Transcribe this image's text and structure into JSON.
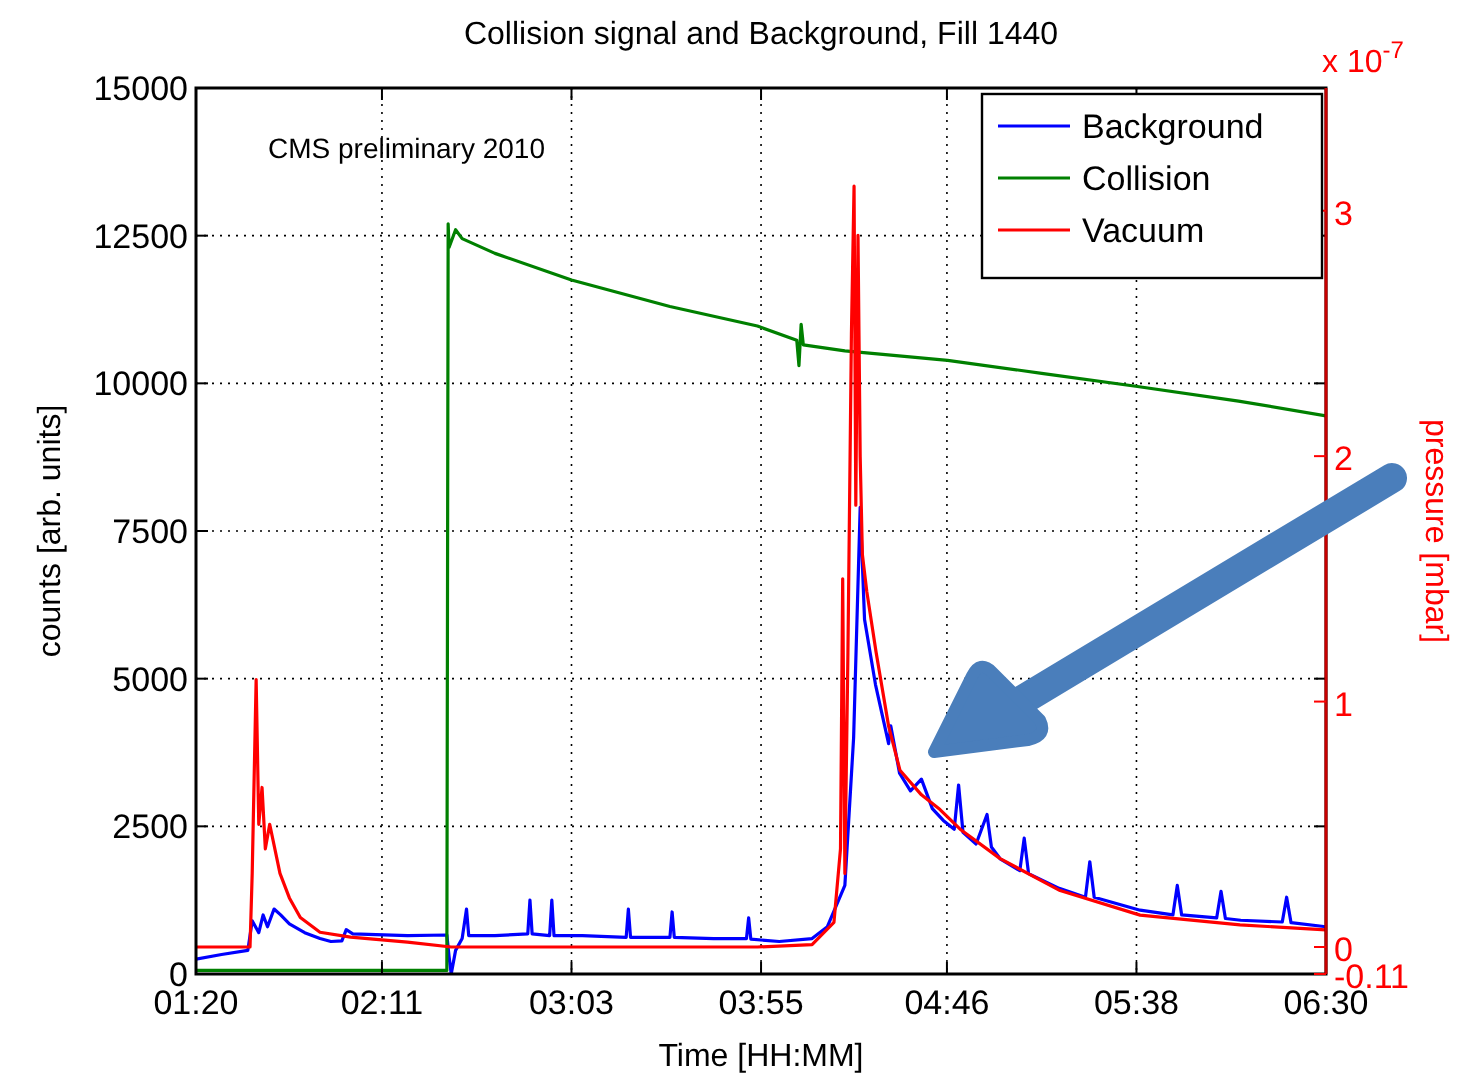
{
  "chart_data": {
    "type": "line",
    "title": "Collision signal and Background, Fill 1440",
    "xlabel": "Time [HH:MM]",
    "ylabel": "counts [arb. units]",
    "y2label": "pressure [mbar]",
    "annotations": [
      "CMS preliminary 2010",
      "x 10$^{-7}$"
    ],
    "xlim": [
      1.333,
      6.5
    ],
    "xticks": [
      {
        "value": 1.333,
        "label": "01:20"
      },
      {
        "value": 2.1833,
        "label": "02:11"
      },
      {
        "value": 3.05,
        "label": "03:03"
      },
      {
        "value": 3.9167,
        "label": "03:55"
      },
      {
        "value": 4.7667,
        "label": "04:46"
      },
      {
        "value": 5.6333,
        "label": "05:38"
      },
      {
        "value": 6.5,
        "label": "06:30"
      }
    ],
    "ylim": [
      0,
      15000
    ],
    "yticks": [
      0,
      2500,
      5000,
      7500,
      10000,
      12500,
      15000
    ],
    "y2lim": [
      -0.11,
      3.5
    ],
    "y2ticks": [
      -0.11,
      0,
      1,
      2,
      3
    ],
    "grid": true,
    "legend": "top right",
    "line_style": "solid",
    "series": [
      {
        "name": "Background",
        "color": "#0000ff",
        "x": [
          1.333,
          1.45,
          1.57,
          1.59,
          1.62,
          1.64,
          1.66,
          1.69,
          1.72,
          1.76,
          1.83,
          1.9,
          1.95,
          2.0,
          2.02,
          2.05,
          2.3,
          2.48,
          2.49,
          2.5,
          2.52,
          2.55,
          2.57,
          2.58,
          2.7,
          2.85,
          2.86,
          2.87,
          2.95,
          2.96,
          2.97,
          3.1,
          3.3,
          3.31,
          3.32,
          3.5,
          3.51,
          3.52,
          3.7,
          3.85,
          3.86,
          3.87,
          4.0,
          4.15,
          4.22,
          4.3,
          4.34,
          4.37,
          4.39,
          4.44,
          4.5,
          4.51,
          4.55,
          4.6,
          4.65,
          4.7,
          4.75,
          4.8,
          4.82,
          4.84,
          4.9,
          4.95,
          4.97,
          5.01,
          5.1,
          5.12,
          5.14,
          5.28,
          5.4,
          5.42,
          5.44,
          5.65,
          5.8,
          5.82,
          5.84,
          6.0,
          6.02,
          6.04,
          6.11,
          6.3,
          6.32,
          6.34,
          6.5
        ],
        "values": [
          250,
          330,
          400,
          900,
          700,
          1000,
          800,
          1100,
          1000,
          850,
          700,
          600,
          550,
          560,
          750,
          680,
          650,
          660,
          300,
          0,
          400,
          600,
          1100,
          650,
          650,
          680,
          1250,
          680,
          650,
          1250,
          650,
          650,
          620,
          1100,
          620,
          620,
          1050,
          620,
          600,
          600,
          950,
          590,
          550,
          600,
          800,
          1500,
          4000,
          7900,
          6000,
          4900,
          3900,
          4200,
          3400,
          3100,
          3300,
          2800,
          2600,
          2450,
          3200,
          2400,
          2200,
          2700,
          2150,
          1950,
          1750,
          2300,
          1700,
          1450,
          1300,
          1900,
          1300,
          1080,
          1000,
          1500,
          1000,
          950,
          1400,
          940,
          910,
          880,
          1300,
          870,
          800
        ]
      },
      {
        "name": "Collision",
        "color": "#008000",
        "x": [
          1.333,
          2.48,
          2.486,
          2.49,
          2.52,
          2.55,
          2.7,
          3.05,
          3.5,
          3.9,
          4.08,
          4.09,
          4.1,
          4.11,
          4.3,
          4.77,
          5.2,
          5.63,
          6.1,
          6.5
        ],
        "values": [
          60,
          60,
          12700,
          12300,
          12600,
          12450,
          12200,
          11750,
          11300,
          10970,
          10730,
          10300,
          11000,
          10650,
          10550,
          10390,
          10170,
          9950,
          9700,
          9450
        ]
      },
      {
        "name": "Vacuum",
        "color": "#ff0000",
        "axis": "y2",
        "x": [
          1.333,
          1.58,
          1.59,
          1.608,
          1.62,
          1.635,
          1.65,
          1.67,
          1.717,
          1.76,
          1.81,
          1.9,
          2.04,
          2.3,
          2.5,
          3.0,
          3.9,
          4.15,
          4.25,
          4.28,
          4.29,
          4.3,
          4.314,
          4.33,
          4.342,
          4.35,
          4.36,
          4.37,
          4.38,
          4.4,
          4.443,
          4.5,
          4.552,
          4.65,
          4.735,
          4.827,
          5.01,
          5.284,
          5.65,
          6.107,
          6.5
        ],
        "values": [
          0,
          0,
          0.3,
          1.09,
          0.5,
          0.65,
          0.4,
          0.5,
          0.3,
          0.2,
          0.12,
          0.06,
          0.04,
          0.02,
          0,
          0,
          0,
          0.01,
          0.1,
          0.4,
          1.5,
          0.3,
          1.2,
          2.5,
          3.1,
          1.8,
          2.9,
          2.0,
          1.6,
          1.45,
          1.2,
          0.9,
          0.72,
          0.62,
          0.56,
          0.48,
          0.36,
          0.23,
          0.13,
          0.09,
          0.07
        ]
      }
    ]
  }
}
